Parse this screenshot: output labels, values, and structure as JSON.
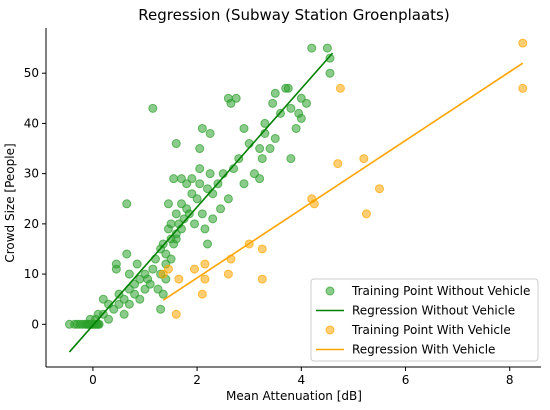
{
  "chart_data": {
    "type": "scatter",
    "title": "Regression (Subway Station Groenplaats)",
    "xlabel": "Mean Attenuation [dB]",
    "ylabel": "Crowd Size [People]",
    "xlim": [
      -0.9,
      8.6
    ],
    "ylim": [
      -8.5,
      59
    ],
    "x_ticks": [
      0,
      2,
      4,
      6,
      8
    ],
    "y_ticks": [
      0,
      10,
      20,
      30,
      40,
      50
    ],
    "grid": false,
    "legend_position": "lower-right",
    "legend": [
      {
        "label": "Training Point Without Vehicle",
        "kind": "marker",
        "color": "#2ca02c"
      },
      {
        "label": "Regression Without Vehicle",
        "kind": "line",
        "color": "#008000"
      },
      {
        "label": "Training Point With Vehicle",
        "kind": "marker",
        "color": "#ffa500"
      },
      {
        "label": "Regression With Vehicle",
        "kind": "line",
        "color": "#ffa500"
      }
    ],
    "series": [
      {
        "name": "Training Point Without Vehicle",
        "kind": "scatter",
        "color": "#2ca02c",
        "points": [
          [
            -0.45,
            0
          ],
          [
            -0.35,
            0
          ],
          [
            -0.3,
            0
          ],
          [
            -0.25,
            0
          ],
          [
            -0.2,
            0
          ],
          [
            -0.15,
            0
          ],
          [
            -0.12,
            0
          ],
          [
            -0.1,
            0
          ],
          [
            -0.08,
            0
          ],
          [
            -0.05,
            0
          ],
          [
            -0.02,
            0
          ],
          [
            0.0,
            0
          ],
          [
            0.02,
            0
          ],
          [
            0.05,
            0
          ],
          [
            0.08,
            0
          ],
          [
            0.1,
            0
          ],
          [
            0.12,
            0
          ],
          [
            -0.05,
            1
          ],
          [
            0.05,
            1
          ],
          [
            0.1,
            2
          ],
          [
            0.2,
            2
          ],
          [
            0.3,
            1
          ],
          [
            0.2,
            5
          ],
          [
            0.4,
            3
          ],
          [
            0.5,
            4
          ],
          [
            0.5,
            6
          ],
          [
            0.6,
            2
          ],
          [
            0.6,
            5
          ],
          [
            0.7,
            4
          ],
          [
            0.7,
            7
          ],
          [
            0.8,
            6
          ],
          [
            0.8,
            8
          ],
          [
            0.9,
            5
          ],
          [
            0.9,
            9
          ],
          [
            1.0,
            7
          ],
          [
            1.0,
            10
          ],
          [
            0.45,
            11
          ],
          [
            0.45,
            12
          ],
          [
            0.65,
            14
          ],
          [
            0.7,
            10
          ],
          [
            0.85,
            12
          ],
          [
            1.05,
            9
          ],
          [
            1.1,
            8
          ],
          [
            1.15,
            11
          ],
          [
            1.2,
            13
          ],
          [
            1.25,
            7
          ],
          [
            1.3,
            15
          ],
          [
            1.3,
            10
          ],
          [
            1.35,
            16
          ],
          [
            1.4,
            14
          ],
          [
            1.4,
            12
          ],
          [
            1.45,
            19
          ],
          [
            1.5,
            17
          ],
          [
            1.5,
            20
          ],
          [
            1.55,
            16
          ],
          [
            1.6,
            18
          ],
          [
            1.6,
            22
          ],
          [
            1.65,
            20
          ],
          [
            1.7,
            19
          ],
          [
            1.7,
            24
          ],
          [
            1.75,
            21
          ],
          [
            1.8,
            23
          ],
          [
            1.85,
            22
          ],
          [
            1.9,
            26
          ],
          [
            1.95,
            20
          ],
          [
            2.0,
            25
          ],
          [
            2.05,
            28
          ],
          [
            2.1,
            22
          ],
          [
            2.15,
            19
          ],
          [
            2.2,
            27
          ],
          [
            2.25,
            30
          ],
          [
            2.3,
            26
          ],
          [
            2.4,
            28
          ],
          [
            2.45,
            23
          ],
          [
            2.5,
            30
          ],
          [
            2.6,
            25
          ],
          [
            2.7,
            31
          ],
          [
            2.8,
            33
          ],
          [
            2.9,
            28
          ],
          [
            3.0,
            36
          ],
          [
            3.1,
            30
          ],
          [
            3.2,
            29
          ],
          [
            3.25,
            33
          ],
          [
            3.3,
            38
          ],
          [
            3.4,
            35
          ],
          [
            3.5,
            37
          ],
          [
            3.6,
            42
          ],
          [
            3.7,
            47
          ],
          [
            3.8,
            43
          ],
          [
            3.9,
            39
          ],
          [
            4.0,
            41
          ],
          [
            4.1,
            44
          ],
          [
            4.2,
            55
          ],
          [
            0.65,
            24
          ],
          [
            1.15,
            43
          ],
          [
            1.6,
            36
          ],
          [
            1.55,
            29
          ],
          [
            1.7,
            29
          ],
          [
            1.8,
            28
          ],
          [
            2.05,
            35
          ],
          [
            2.1,
            39
          ],
          [
            2.25,
            38
          ],
          [
            2.6,
            45
          ],
          [
            2.65,
            44
          ],
          [
            2.75,
            45
          ],
          [
            2.9,
            39
          ],
          [
            3.2,
            35
          ],
          [
            3.3,
            40
          ],
          [
            3.45,
            44
          ],
          [
            3.5,
            46
          ],
          [
            3.75,
            47
          ],
          [
            3.8,
            33
          ],
          [
            3.95,
            42
          ],
          [
            4.0,
            45
          ],
          [
            4.5,
            55
          ],
          [
            4.55,
            50
          ],
          [
            4.55,
            53
          ],
          [
            1.3,
            3
          ],
          [
            1.35,
            6
          ],
          [
            1.4,
            9
          ],
          [
            1.5,
            13
          ],
          [
            1.45,
            24
          ],
          [
            1.6,
            17
          ],
          [
            2.2,
            16
          ],
          [
            2.3,
            21
          ],
          [
            1.9,
            29
          ],
          [
            2.05,
            31
          ],
          [
            0.3,
            4
          ]
        ]
      },
      {
        "name": "Regression Without Vehicle",
        "kind": "line",
        "color": "#008000",
        "points": [
          [
            -0.45,
            -5.5
          ],
          [
            4.6,
            54
          ]
        ]
      },
      {
        "name": "Training Point With Vehicle",
        "kind": "scatter",
        "color": "#ffa500",
        "points": [
          [
            1.35,
            10
          ],
          [
            1.45,
            11
          ],
          [
            1.6,
            2
          ],
          [
            1.65,
            9
          ],
          [
            1.95,
            11
          ],
          [
            2.1,
            6
          ],
          [
            2.15,
            9
          ],
          [
            2.15,
            12
          ],
          [
            2.6,
            10
          ],
          [
            2.65,
            13
          ],
          [
            3.0,
            16
          ],
          [
            3.25,
            15
          ],
          [
            3.25,
            9
          ],
          [
            4.2,
            25
          ],
          [
            4.25,
            24
          ],
          [
            4.7,
            32
          ],
          [
            4.75,
            47
          ],
          [
            5.2,
            33
          ],
          [
            5.25,
            22
          ],
          [
            5.5,
            27
          ],
          [
            8.25,
            56
          ],
          [
            8.25,
            47
          ]
        ]
      },
      {
        "name": "Regression With Vehicle",
        "kind": "line",
        "color": "#ffa500",
        "points": [
          [
            1.35,
            4.8
          ],
          [
            8.25,
            52
          ]
        ]
      }
    ]
  }
}
